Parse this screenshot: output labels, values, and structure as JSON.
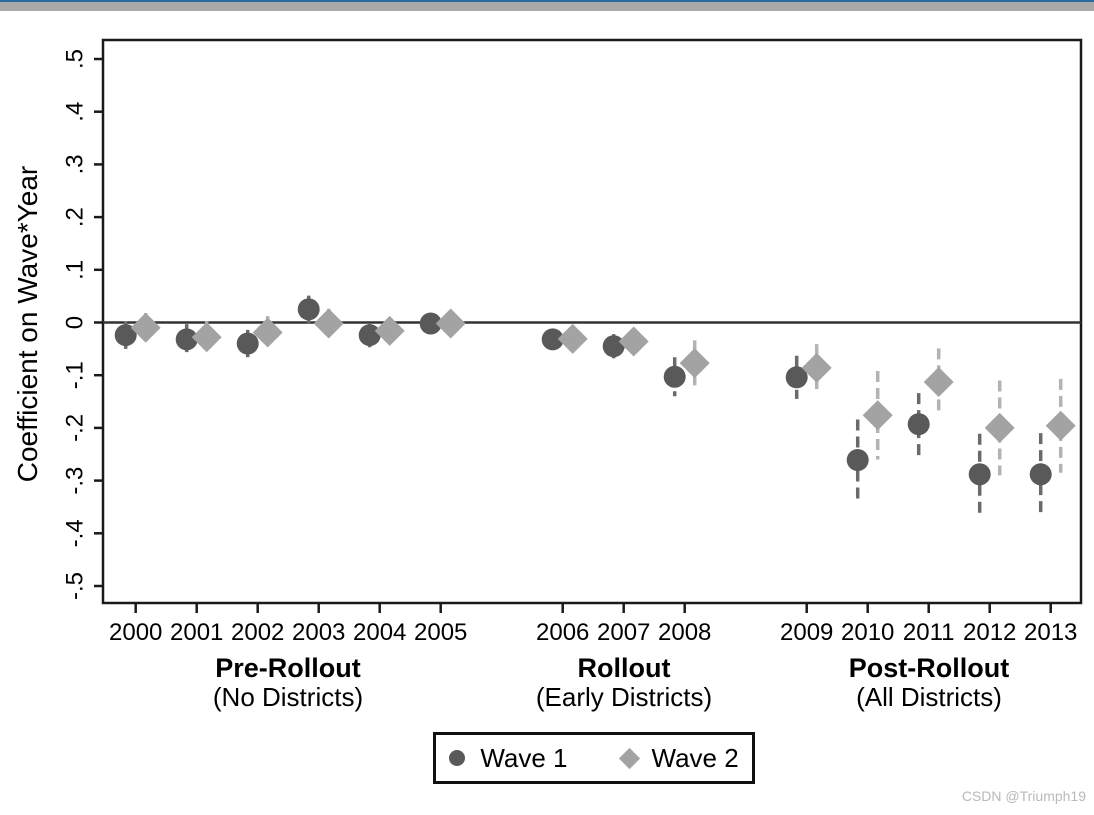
{
  "page": {
    "watermark": "CSDN @Triumph19"
  },
  "colors": {
    "top_blue": "#2b6a9c",
    "top_gray": "#a9a9a9",
    "axis": "#1a1a1a",
    "zero_line": "#333333",
    "wave1": "#595959",
    "wave1_bar": "#6a6a6a",
    "wave2": "#a3a3a3",
    "wave2_bar": "#b3b3b3",
    "watermark": "#b9b9b9"
  },
  "chart_data": {
    "type": "scatter",
    "title": "",
    "xlabel": "",
    "ylabel": "Coefficient on Wave*Year",
    "ylim": [
      -0.5,
      0.5
    ],
    "yticks": [
      0.5,
      0.4,
      0.3,
      0.2,
      0.1,
      0,
      -0.1,
      -0.2,
      -0.3,
      -0.4,
      -0.5
    ],
    "ytick_labels": [
      ".5",
      ".4",
      ".3",
      ".2",
      ".1",
      "0",
      "-.1",
      "-.2",
      "-.3",
      "-.4",
      "-.5"
    ],
    "grid": false,
    "zero_reference_line": 0,
    "x_years": [
      2000,
      2001,
      2002,
      2003,
      2004,
      2005,
      2006,
      2007,
      2008,
      2009,
      2010,
      2011,
      2012,
      2013
    ],
    "x_group_gaps_after": [
      2005,
      2008
    ],
    "legend_position": "bottom-center",
    "legend": [
      {
        "name": "Wave 1",
        "marker": "circle",
        "color": "#595959"
      },
      {
        "name": "Wave 2",
        "marker": "diamond",
        "color": "#a3a3a3"
      }
    ],
    "groups": [
      {
        "label": "Pre-Rollout",
        "sublabel": "(No Districts)",
        "years": [
          2000,
          2005
        ]
      },
      {
        "label": "Rollout",
        "sublabel": "(Early Districts)",
        "years": [
          2006,
          2008
        ]
      },
      {
        "label": "Post-Rollout",
        "sublabel": "(All Districts)",
        "years": [
          2009,
          2013
        ]
      }
    ],
    "series": [
      {
        "name": "Wave 1",
        "marker": "circle",
        "color": "#595959",
        "bar_color": "#6a6a6a",
        "points": [
          {
            "year": 2000,
            "value": -0.024,
            "ci_low": -0.05,
            "ci_high": 0.002
          },
          {
            "year": 2001,
            "value": -0.032,
            "ci_low": -0.061,
            "ci_high": -0.003
          },
          {
            "year": 2002,
            "value": -0.04,
            "ci_low": -0.066,
            "ci_high": -0.014
          },
          {
            "year": 2003,
            "value": 0.025,
            "ci_low": -0.001,
            "ci_high": 0.051
          },
          {
            "year": 2004,
            "value": -0.024,
            "ci_low": -0.047,
            "ci_high": -0.001
          },
          {
            "year": 2005,
            "value": -0.002,
            "ci_low": -0.022,
            "ci_high": 0.018
          },
          {
            "year": 2006,
            "value": -0.032,
            "ci_low": -0.051,
            "ci_high": -0.013
          },
          {
            "year": 2007,
            "value": -0.045,
            "ci_low": -0.068,
            "ci_high": -0.022
          },
          {
            "year": 2008,
            "value": -0.103,
            "ci_low": -0.14,
            "ci_high": -0.066
          },
          {
            "year": 2009,
            "value": -0.104,
            "ci_low": -0.145,
            "ci_high": -0.063
          },
          {
            "year": 2010,
            "value": -0.261,
            "ci_low": -0.338,
            "ci_high": -0.184
          },
          {
            "year": 2011,
            "value": -0.193,
            "ci_low": -0.252,
            "ci_high": -0.134
          },
          {
            "year": 2012,
            "value": -0.288,
            "ci_low": -0.365,
            "ci_high": -0.211
          },
          {
            "year": 2013,
            "value": -0.288,
            "ci_low": -0.364,
            "ci_high": -0.21
          }
        ]
      },
      {
        "name": "Wave 2",
        "marker": "diamond",
        "color": "#a3a3a3",
        "bar_color": "#b3b3b3",
        "points": [
          {
            "year": 2000,
            "value": -0.01,
            "ci_low": -0.038,
            "ci_high": 0.018
          },
          {
            "year": 2001,
            "value": -0.028,
            "ci_low": -0.058,
            "ci_high": 0.002
          },
          {
            "year": 2002,
            "value": -0.019,
            "ci_low": -0.05,
            "ci_high": 0.012
          },
          {
            "year": 2003,
            "value": -0.002,
            "ci_low": -0.03,
            "ci_high": 0.026
          },
          {
            "year": 2004,
            "value": -0.016,
            "ci_low": -0.038,
            "ci_high": 0.006
          },
          {
            "year": 2005,
            "value": -0.002,
            "ci_low": -0.022,
            "ci_high": 0.018
          },
          {
            "year": 2006,
            "value": -0.031,
            "ci_low": -0.05,
            "ci_high": -0.012
          },
          {
            "year": 2007,
            "value": -0.036,
            "ci_low": -0.06,
            "ci_high": -0.012
          },
          {
            "year": 2008,
            "value": -0.077,
            "ci_low": -0.12,
            "ci_high": -0.034
          },
          {
            "year": 2009,
            "value": -0.086,
            "ci_low": -0.131,
            "ci_high": -0.041
          },
          {
            "year": 2010,
            "value": -0.176,
            "ci_low": -0.26,
            "ci_high": -0.092
          },
          {
            "year": 2011,
            "value": -0.113,
            "ci_low": -0.177,
            "ci_high": -0.049
          },
          {
            "year": 2012,
            "value": -0.2,
            "ci_low": -0.29,
            "ci_high": -0.11
          },
          {
            "year": 2013,
            "value": -0.196,
            "ci_low": -0.285,
            "ci_high": -0.107
          }
        ]
      }
    ]
  }
}
